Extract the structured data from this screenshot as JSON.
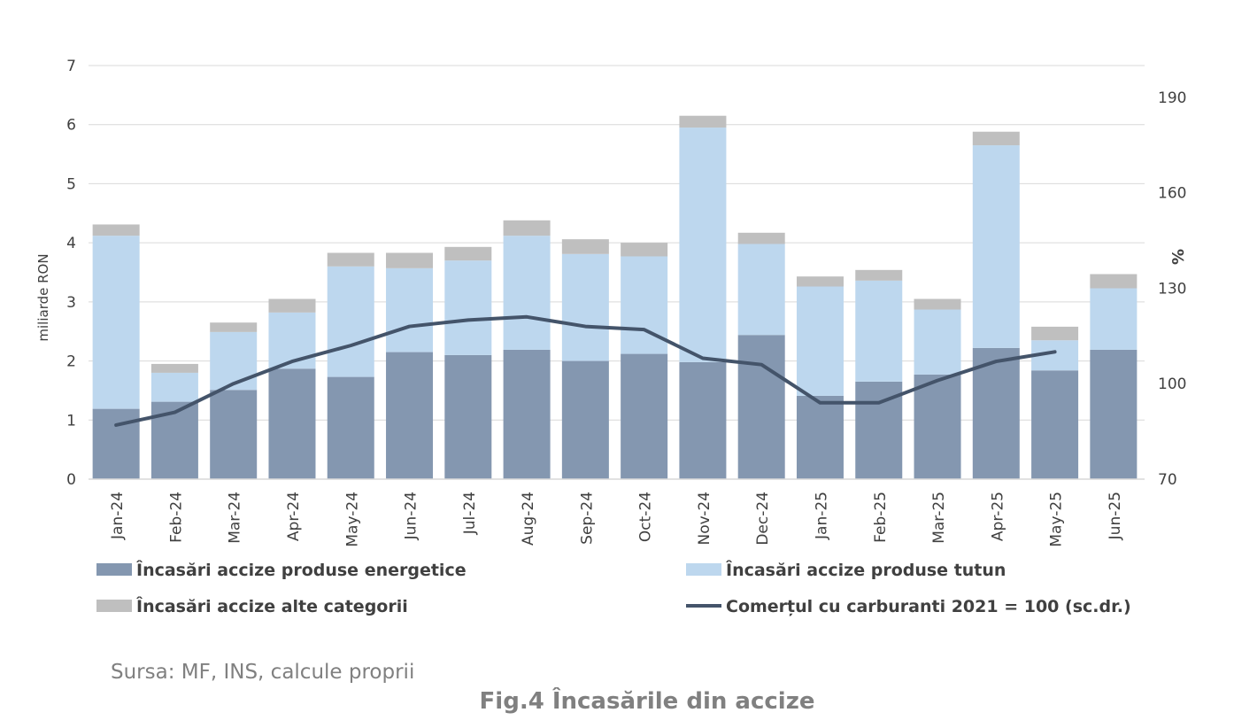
{
  "chart_data": {
    "type": "bar",
    "stacked": true,
    "categories": [
      "Jan-24",
      "Feb-24",
      "Mar-24",
      "Apr-24",
      "May-24",
      "Jun-24",
      "Jul-24",
      "Aug-24",
      "Sep-24",
      "Oct-24",
      "Nov-24",
      "Dec-24",
      "Jan-25",
      "Feb-25",
      "Mar-25",
      "Apr-25",
      "May-25",
      "Jun-25"
    ],
    "series": [
      {
        "name": "Încasări accize produse energetice",
        "kind": "bar",
        "color": "#8497b0",
        "values": [
          1.19,
          1.31,
          1.51,
          1.87,
          1.73,
          2.15,
          2.1,
          2.19,
          2.0,
          2.12,
          1.98,
          2.44,
          1.41,
          1.65,
          1.77,
          2.22,
          1.84,
          2.19
        ]
      },
      {
        "name": "Încasări accize produse tutun",
        "kind": "bar",
        "color": "#bdd7ee",
        "values": [
          2.93,
          0.49,
          0.98,
          0.95,
          1.87,
          1.42,
          1.6,
          1.93,
          1.81,
          1.65,
          3.97,
          1.54,
          1.85,
          1.71,
          1.1,
          3.43,
          0.51,
          1.04
        ]
      },
      {
        "name": "Încasări accize alte categorii",
        "kind": "bar",
        "color": "#bfbfbf",
        "values": [
          0.19,
          0.15,
          0.16,
          0.23,
          0.23,
          0.26,
          0.23,
          0.26,
          0.25,
          0.23,
          0.2,
          0.19,
          0.17,
          0.18,
          0.18,
          0.23,
          0.23,
          0.24
        ]
      },
      {
        "name": "Comerțul cu carburanti 2021 = 100 (sc.dr.)",
        "kind": "line",
        "axis": "right",
        "color": "#44546a",
        "values": [
          87,
          91,
          100,
          107,
          112,
          118,
          120,
          121,
          118,
          117,
          108,
          106,
          94,
          94,
          101,
          107,
          110,
          null
        ]
      }
    ],
    "ylabel": "miliarde RON",
    "ylim": [
      0,
      7
    ],
    "yticks": [
      "0",
      "1",
      "2",
      "3",
      "4",
      "5",
      "6",
      "7"
    ],
    "y2label": "%",
    "y2lim": [
      70,
      200
    ],
    "y2ticks": [
      "70",
      "100",
      "130",
      "160",
      "190"
    ],
    "grid": true,
    "legend_position": "bottom"
  },
  "source_text": "Sursa: MF, INS, calcule proprii",
  "figure_title": "Fig.4 Încasările din accize"
}
